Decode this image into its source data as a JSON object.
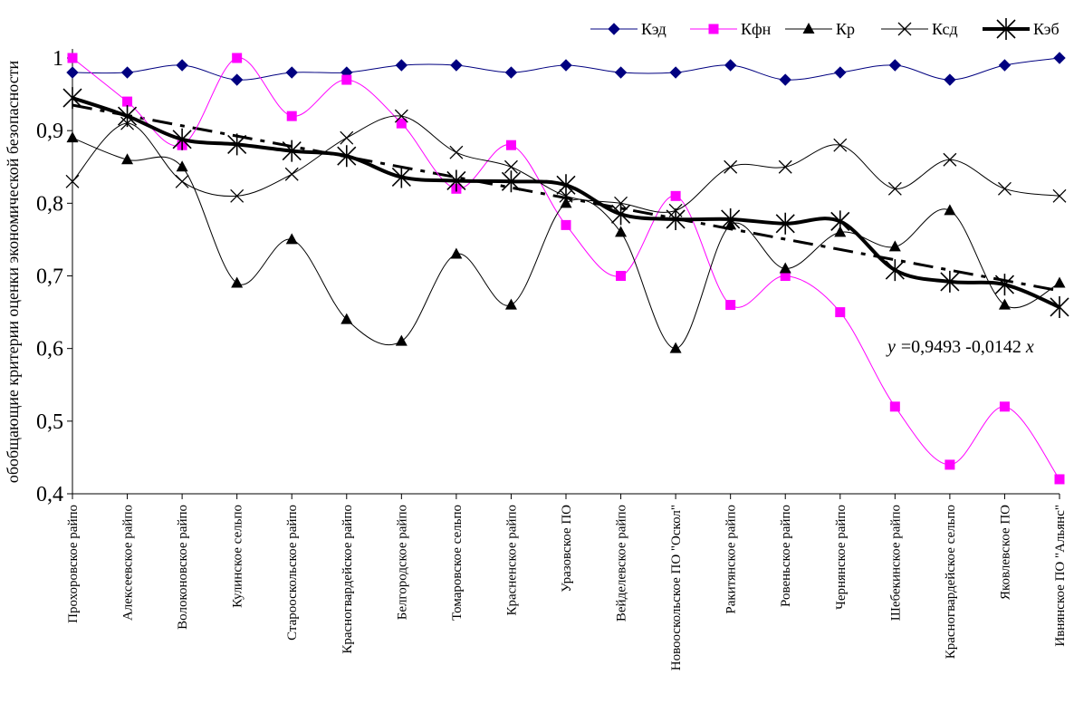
{
  "chart_data": {
    "type": "line",
    "title": "",
    "xlabel": "",
    "ylabel": "обобщающие критерии оценки экономической безопасности",
    "ylim": [
      0.4,
      1.0
    ],
    "yticks": [
      "0,4",
      "0,5",
      "0,6",
      "0,7",
      "0,8",
      "0,9",
      "1"
    ],
    "grid": false,
    "legend_position": "top-right",
    "categories": [
      "Прохоровское райпо",
      "Алексеевское райпо",
      "Волоконовское райпо",
      "Кулинское сельпо",
      "Старооскольское райпо",
      "Красногвардейское райпо",
      "Белгородское райпо",
      "Томаровское сельпо",
      "Красненское райпо",
      "Уразовское ПО",
      "Вейделевское райпо",
      "Новооскольское ПО \"Оскол\"",
      "Ракитянское райпо",
      "Ровеньское райпо",
      "Чернянское райпо",
      "Шебекинское райпо",
      "Красногвардейское сельпо",
      "Яковлевское ПО",
      "Ивнянское ПО \"Альянс\""
    ],
    "series": [
      {
        "name": "Кэд",
        "color": "#000080",
        "marker": "diamond",
        "width": 1,
        "values": [
          0.98,
          0.98,
          0.99,
          0.97,
          0.98,
          0.98,
          0.99,
          0.99,
          0.98,
          0.99,
          0.98,
          0.98,
          0.99,
          0.97,
          0.98,
          0.99,
          0.97,
          0.99,
          1.0
        ]
      },
      {
        "name": "Кфн",
        "color": "#ff00ff",
        "marker": "square",
        "width": 1,
        "values": [
          1.0,
          0.94,
          0.88,
          1.0,
          0.92,
          0.97,
          0.91,
          0.82,
          0.88,
          0.77,
          0.7,
          0.81,
          0.66,
          0.7,
          0.65,
          0.52,
          0.44,
          0.52,
          0.42
        ]
      },
      {
        "name": "Кр",
        "color": "#000000",
        "marker": "triangle",
        "width": 1,
        "values": [
          0.89,
          0.86,
          0.85,
          0.69,
          0.75,
          0.64,
          0.61,
          0.73,
          0.66,
          0.8,
          0.76,
          0.6,
          0.77,
          0.71,
          0.76,
          0.74,
          0.79,
          0.66,
          0.69
        ]
      },
      {
        "name": "Ксд",
        "color": "#000000",
        "marker": "x",
        "width": 1,
        "values": [
          0.83,
          0.91,
          0.83,
          0.81,
          0.84,
          0.89,
          0.92,
          0.87,
          0.85,
          0.81,
          0.8,
          0.79,
          0.85,
          0.85,
          0.88,
          0.82,
          0.86,
          0.82,
          0.81
        ]
      },
      {
        "name": "Кэб",
        "color": "#000000",
        "marker": "star",
        "width": 4,
        "values": [
          0.945,
          0.92,
          0.888,
          0.881,
          0.872,
          0.865,
          0.836,
          0.831,
          0.83,
          0.825,
          0.785,
          0.778,
          0.778,
          0.772,
          0.775,
          0.708,
          0.692,
          0.688,
          0.657
        ]
      }
    ],
    "trendline": {
      "intercept": 0.9493,
      "slope": -0.0142,
      "style": "dashed",
      "label": "=0,9493 -0,0142x",
      "label_var_y": "y",
      "label_var_x": "x"
    }
  }
}
